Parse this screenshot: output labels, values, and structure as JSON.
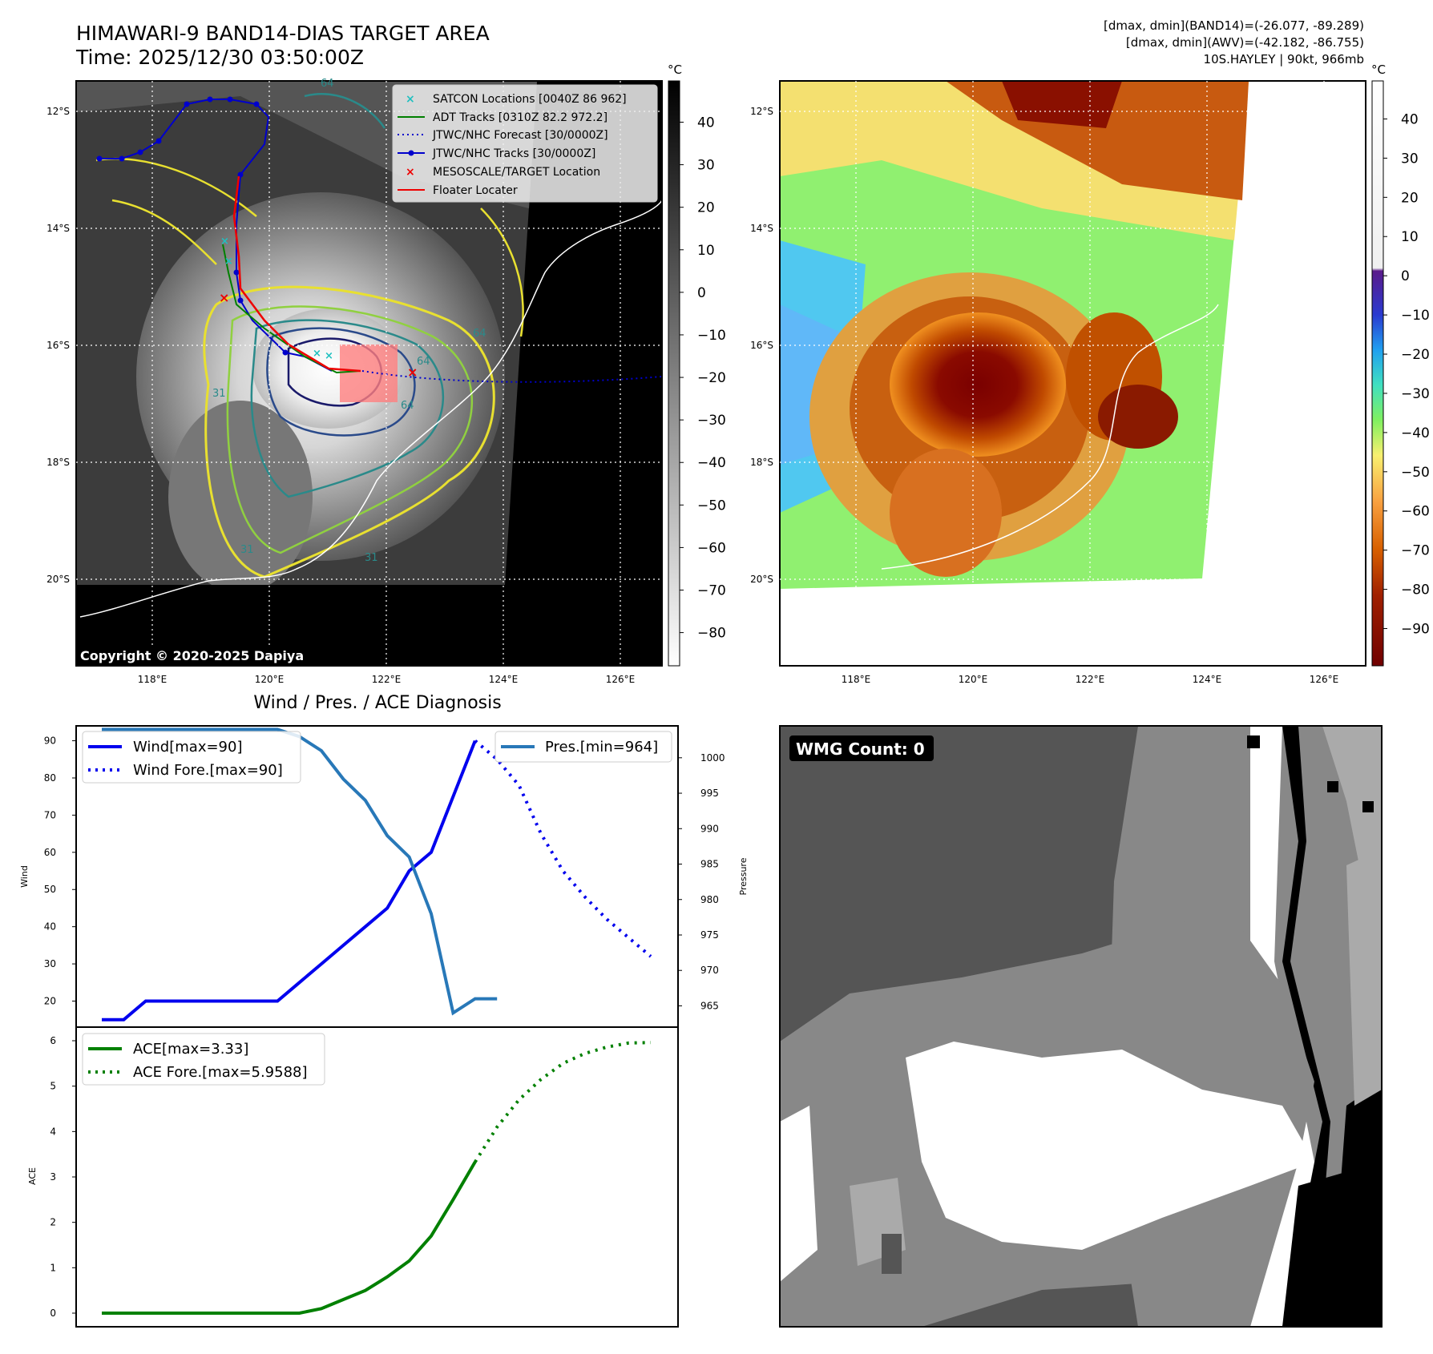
{
  "satellite_panel": {
    "title": "HIMAWARI-9 BAND14-DIAS TARGET AREA",
    "time": "Time: 2025/12/30 03:50:00Z",
    "copyright": "Copyright © 2020-2025 Dapiya",
    "lat_labels": [
      "12°S",
      "14°S",
      "16°S",
      "18°S",
      "20°S"
    ],
    "lon_labels": [
      "118°E",
      "120°E",
      "122°E",
      "124°E",
      "126°E"
    ],
    "colorbar_unit": "°C",
    "colorbar_ticks": [
      40,
      30,
      20,
      10,
      0,
      -10,
      -20,
      -30,
      -40,
      -50,
      -60,
      -70,
      -80
    ],
    "contour_labels": [
      "64",
      "64",
      "64",
      "31",
      "31",
      "31",
      "64"
    ],
    "legend": [
      "SATCON Locations [0040Z 86 962]",
      "ADT Tracks [0310Z 82.2 972.2]",
      "JTWC/NHC Forecast [30/0000Z]",
      "JTWC/NHC Tracks [30/0000Z]",
      "MESOSCALE/TARGET Location",
      "Floater Locater"
    ]
  },
  "ir_panel": {
    "dmax_band14": "[dmax, dmin](BAND14)=(-26.077, -89.289)",
    "dmax_awv": "[dmax, dmin](AWV)=(-42.182, -86.755)",
    "storm": "10S.HAYLEY | 90kt, 966mb",
    "lat_labels": [
      "12°S",
      "14°S",
      "16°S",
      "18°S",
      "20°S"
    ],
    "lon_labels": [
      "118°E",
      "120°E",
      "122°E",
      "124°E",
      "126°E"
    ],
    "colorbar_unit": "°C",
    "colorbar_ticks": [
      40,
      30,
      20,
      10,
      0,
      -10,
      -20,
      -30,
      -40,
      -50,
      -60,
      -70,
      -80,
      -90
    ]
  },
  "wmg_panel": {
    "badge": "WMG Count: 0"
  },
  "chart_data": [
    {
      "type": "line",
      "title": "Wind / Pres. / ACE Diagnosis",
      "xlabel": "",
      "ylabel": "Wind",
      "y2label": "Pressure",
      "ylim": [
        13,
        94
      ],
      "y2lim": [
        962,
        1004.5
      ],
      "yticks": [
        20,
        30,
        40,
        50,
        60,
        70,
        80,
        90
      ],
      "y2ticks": [
        965,
        970,
        975,
        980,
        985,
        990,
        995,
        1000
      ],
      "legend_left": [
        "Wind[max=90]",
        "Wind Fore.[max=90]"
      ],
      "legend_right": [
        "Pres.[min=964]"
      ],
      "series": [
        {
          "name": "Wind",
          "style": "solid",
          "color": "#0000ee",
          "x": [
            0,
            1,
            2,
            3,
            4,
            5,
            6,
            7,
            8,
            9,
            10,
            11,
            12,
            13,
            14,
            15,
            16,
            17
          ],
          "values": [
            15,
            15,
            20,
            20,
            20,
            20,
            20,
            20,
            20,
            25,
            30,
            35,
            40,
            45,
            55,
            60,
            75,
            90
          ]
        },
        {
          "name": "Wind Fore.",
          "style": "dotted",
          "color": "#0000ee",
          "x": [
            17,
            18,
            19,
            20,
            21,
            22,
            23,
            24,
            25
          ],
          "values": [
            90,
            85,
            78,
            65,
            55,
            48,
            42,
            37,
            32
          ]
        },
        {
          "name": "Pres.",
          "axis": "right",
          "style": "solid",
          "color": "#2878b8",
          "x": [
            0,
            1,
            2,
            3,
            4,
            5,
            6,
            7,
            8,
            9,
            10,
            11,
            12,
            13,
            14,
            15,
            16,
            17,
            18
          ],
          "values": [
            1004,
            1004,
            1004,
            1004,
            1004,
            1004,
            1004,
            1004,
            1004,
            1003,
            1001,
            997,
            994,
            989,
            986,
            978,
            964,
            966,
            966
          ]
        }
      ]
    },
    {
      "type": "line",
      "title": "",
      "xlabel": "",
      "ylabel": "ACE",
      "ylim": [
        -0.3,
        6.3
      ],
      "yticks": [
        0,
        1,
        2,
        3,
        4,
        5,
        6
      ],
      "legend": [
        "ACE[max=3.33]",
        "ACE Fore.[max=5.9588]"
      ],
      "series": [
        {
          "name": "ACE",
          "style": "solid",
          "color": "#008000",
          "x": [
            0,
            1,
            2,
            3,
            4,
            5,
            6,
            7,
            8,
            9,
            10,
            11,
            12,
            13,
            14,
            15,
            16,
            17
          ],
          "values": [
            0,
            0,
            0,
            0,
            0,
            0,
            0,
            0,
            0,
            0,
            0.1,
            0.3,
            0.5,
            0.8,
            1.15,
            1.7,
            2.5,
            3.33
          ]
        },
        {
          "name": "ACE Fore.",
          "style": "dotted",
          "color": "#008000",
          "x": [
            17,
            18,
            19,
            20,
            21,
            22,
            23,
            24,
            25
          ],
          "values": [
            3.33,
            4.1,
            4.7,
            5.15,
            5.5,
            5.72,
            5.86,
            5.95,
            5.9588
          ]
        }
      ]
    }
  ]
}
